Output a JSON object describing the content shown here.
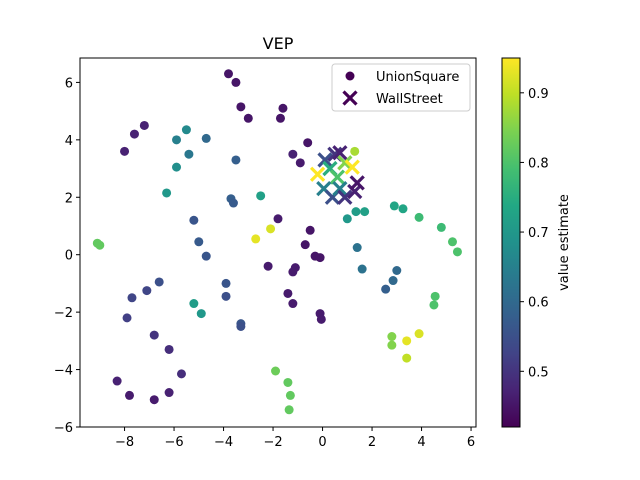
{
  "chart_data": {
    "type": "scatter",
    "title": "VEP",
    "xlabel": "",
    "ylabel": "",
    "xlim": [
      -9.8,
      6.2
    ],
    "ylim": [
      -6,
      6.85
    ],
    "xticks": [
      -8,
      -6,
      -4,
      -2,
      0,
      2,
      4,
      6
    ],
    "yticks": [
      -6,
      -4,
      -2,
      0,
      2,
      4,
      6
    ],
    "grid": false,
    "legend_position": "top-right",
    "colorbar": {
      "label": "value estimate",
      "range": [
        0.42,
        0.95
      ],
      "ticks": [
        0.5,
        0.6,
        0.7,
        0.8,
        0.9
      ],
      "colormap": "viridis"
    },
    "series": [
      {
        "name": "UnionSquare",
        "marker": "circle",
        "points": [
          {
            "x": -3.8,
            "y": 6.3,
            "v": 0.45
          },
          {
            "x": -3.5,
            "y": 6.0,
            "v": 0.45
          },
          {
            "x": -3.3,
            "y": 5.15,
            "v": 0.45
          },
          {
            "x": -1.6,
            "y": 5.1,
            "v": 0.45
          },
          {
            "x": -3.0,
            "y": 4.75,
            "v": 0.45
          },
          {
            "x": -1.7,
            "y": 4.75,
            "v": 0.45
          },
          {
            "x": -7.2,
            "y": 4.5,
            "v": 0.47
          },
          {
            "x": -7.6,
            "y": 4.2,
            "v": 0.47
          },
          {
            "x": -8.0,
            "y": 3.6,
            "v": 0.47
          },
          {
            "x": -5.5,
            "y": 4.35,
            "v": 0.67
          },
          {
            "x": -5.9,
            "y": 4.0,
            "v": 0.65
          },
          {
            "x": -4.7,
            "y": 4.05,
            "v": 0.6
          },
          {
            "x": -5.4,
            "y": 3.5,
            "v": 0.63
          },
          {
            "x": -5.9,
            "y": 3.05,
            "v": 0.68
          },
          {
            "x": -3.5,
            "y": 3.3,
            "v": 0.58
          },
          {
            "x": -1.2,
            "y": 3.5,
            "v": 0.47
          },
          {
            "x": -0.9,
            "y": 3.2,
            "v": 0.46
          },
          {
            "x": -0.6,
            "y": 3.9,
            "v": 0.45
          },
          {
            "x": -6.3,
            "y": 2.15,
            "v": 0.7
          },
          {
            "x": -3.7,
            "y": 1.95,
            "v": 0.58
          },
          {
            "x": -3.6,
            "y": 1.8,
            "v": 0.57
          },
          {
            "x": -2.5,
            "y": 2.05,
            "v": 0.72
          },
          {
            "x": -5.2,
            "y": 1.2,
            "v": 0.56
          },
          {
            "x": -1.8,
            "y": 1.25,
            "v": 0.46
          },
          {
            "x": -2.1,
            "y": 0.9,
            "v": 0.92
          },
          {
            "x": -2.7,
            "y": 0.55,
            "v": 0.93
          },
          {
            "x": -0.5,
            "y": 0.85,
            "v": 0.45
          },
          {
            "x": -5.0,
            "y": 0.45,
            "v": 0.57
          },
          {
            "x": -0.7,
            "y": 0.35,
            "v": 0.45
          },
          {
            "x": -4.7,
            "y": -0.05,
            "v": 0.56
          },
          {
            "x": -0.3,
            "y": -0.05,
            "v": 0.45
          },
          {
            "x": -0.1,
            "y": -0.1,
            "v": 0.45
          },
          {
            "x": -2.2,
            "y": -0.4,
            "v": 0.46
          },
          {
            "x": -1.1,
            "y": -0.45,
            "v": 0.46
          },
          {
            "x": -1.2,
            "y": -0.6,
            "v": 0.46
          },
          {
            "x": -6.6,
            "y": -0.95,
            "v": 0.55
          },
          {
            "x": -3.9,
            "y": -1.0,
            "v": 0.56
          },
          {
            "x": -7.1,
            "y": -1.25,
            "v": 0.53
          },
          {
            "x": -1.4,
            "y": -1.35,
            "v": 0.46
          },
          {
            "x": -3.9,
            "y": -1.45,
            "v": 0.55
          },
          {
            "x": -7.7,
            "y": -1.5,
            "v": 0.53
          },
          {
            "x": -1.2,
            "y": -1.7,
            "v": 0.46
          },
          {
            "x": -5.2,
            "y": -1.7,
            "v": 0.71
          },
          {
            "x": -4.9,
            "y": -2.05,
            "v": 0.7
          },
          {
            "x": -0.1,
            "y": -2.05,
            "v": 0.46
          },
          {
            "x": -0.05,
            "y": -2.25,
            "v": 0.46
          },
          {
            "x": -7.9,
            "y": -2.2,
            "v": 0.52
          },
          {
            "x": -3.3,
            "y": -2.4,
            "v": 0.56
          },
          {
            "x": -3.3,
            "y": -2.5,
            "v": 0.55
          },
          {
            "x": -6.8,
            "y": -2.8,
            "v": 0.5
          },
          {
            "x": -6.2,
            "y": -3.3,
            "v": 0.49
          },
          {
            "x": -5.7,
            "y": -4.15,
            "v": 0.49
          },
          {
            "x": -8.3,
            "y": -4.4,
            "v": 0.47
          },
          {
            "x": -7.8,
            "y": -4.9,
            "v": 0.46
          },
          {
            "x": -6.8,
            "y": -5.05,
            "v": 0.46
          },
          {
            "x": -6.2,
            "y": -4.8,
            "v": 0.47
          },
          {
            "x": -9.1,
            "y": 0.4,
            "v": 0.82
          },
          {
            "x": -9.0,
            "y": 0.33,
            "v": 0.82
          },
          {
            "x": -1.9,
            "y": -4.05,
            "v": 0.83
          },
          {
            "x": -1.4,
            "y": -4.45,
            "v": 0.82
          },
          {
            "x": -1.3,
            "y": -4.9,
            "v": 0.82
          },
          {
            "x": -1.35,
            "y": -5.4,
            "v": 0.82
          },
          {
            "x": 1.0,
            "y": 1.25,
            "v": 0.7
          },
          {
            "x": 1.35,
            "y": 1.5,
            "v": 0.71
          },
          {
            "x": 1.7,
            "y": 1.5,
            "v": 0.72
          },
          {
            "x": 2.9,
            "y": 1.7,
            "v": 0.73
          },
          {
            "x": 3.25,
            "y": 1.6,
            "v": 0.73
          },
          {
            "x": 3.9,
            "y": 1.3,
            "v": 0.78
          },
          {
            "x": 4.8,
            "y": 0.95,
            "v": 0.78
          },
          {
            "x": 5.25,
            "y": 0.45,
            "v": 0.8
          },
          {
            "x": 5.45,
            "y": 0.1,
            "v": 0.8
          },
          {
            "x": 1.4,
            "y": 0.25,
            "v": 0.62
          },
          {
            "x": 1.6,
            "y": -0.5,
            "v": 0.62
          },
          {
            "x": 3.0,
            "y": -0.55,
            "v": 0.6
          },
          {
            "x": 2.85,
            "y": -0.9,
            "v": 0.6
          },
          {
            "x": 2.55,
            "y": -1.2,
            "v": 0.58
          },
          {
            "x": 4.55,
            "y": -1.45,
            "v": 0.8
          },
          {
            "x": 4.5,
            "y": -1.75,
            "v": 0.8
          },
          {
            "x": 2.8,
            "y": -2.85,
            "v": 0.85
          },
          {
            "x": 2.8,
            "y": -3.15,
            "v": 0.85
          },
          {
            "x": 3.9,
            "y": -2.75,
            "v": 0.92
          },
          {
            "x": 3.4,
            "y": -3.0,
            "v": 0.93
          },
          {
            "x": 3.4,
            "y": -3.6,
            "v": 0.9
          },
          {
            "x": 1.3,
            "y": 3.6,
            "v": 0.88
          }
        ]
      },
      {
        "name": "WallStreet",
        "marker": "x",
        "points": [
          {
            "x": -0.2,
            "y": 2.8,
            "v": 0.95
          },
          {
            "x": 0.1,
            "y": 3.3,
            "v": 0.55
          },
          {
            "x": 0.5,
            "y": 3.5,
            "v": 0.5
          },
          {
            "x": 0.7,
            "y": 3.55,
            "v": 0.47
          },
          {
            "x": 0.3,
            "y": 3.0,
            "v": 0.75
          },
          {
            "x": 0.6,
            "y": 2.7,
            "v": 0.8
          },
          {
            "x": 0.9,
            "y": 3.2,
            "v": 0.85
          },
          {
            "x": 1.2,
            "y": 3.05,
            "v": 0.95
          },
          {
            "x": 0.05,
            "y": 2.3,
            "v": 0.65
          },
          {
            "x": 0.4,
            "y": 2.0,
            "v": 0.55
          },
          {
            "x": 0.7,
            "y": 2.3,
            "v": 0.65
          },
          {
            "x": 0.9,
            "y": 2.0,
            "v": 0.5
          },
          {
            "x": 1.3,
            "y": 2.2,
            "v": 0.47
          },
          {
            "x": 1.4,
            "y": 2.5,
            "v": 0.45
          }
        ]
      }
    ]
  }
}
